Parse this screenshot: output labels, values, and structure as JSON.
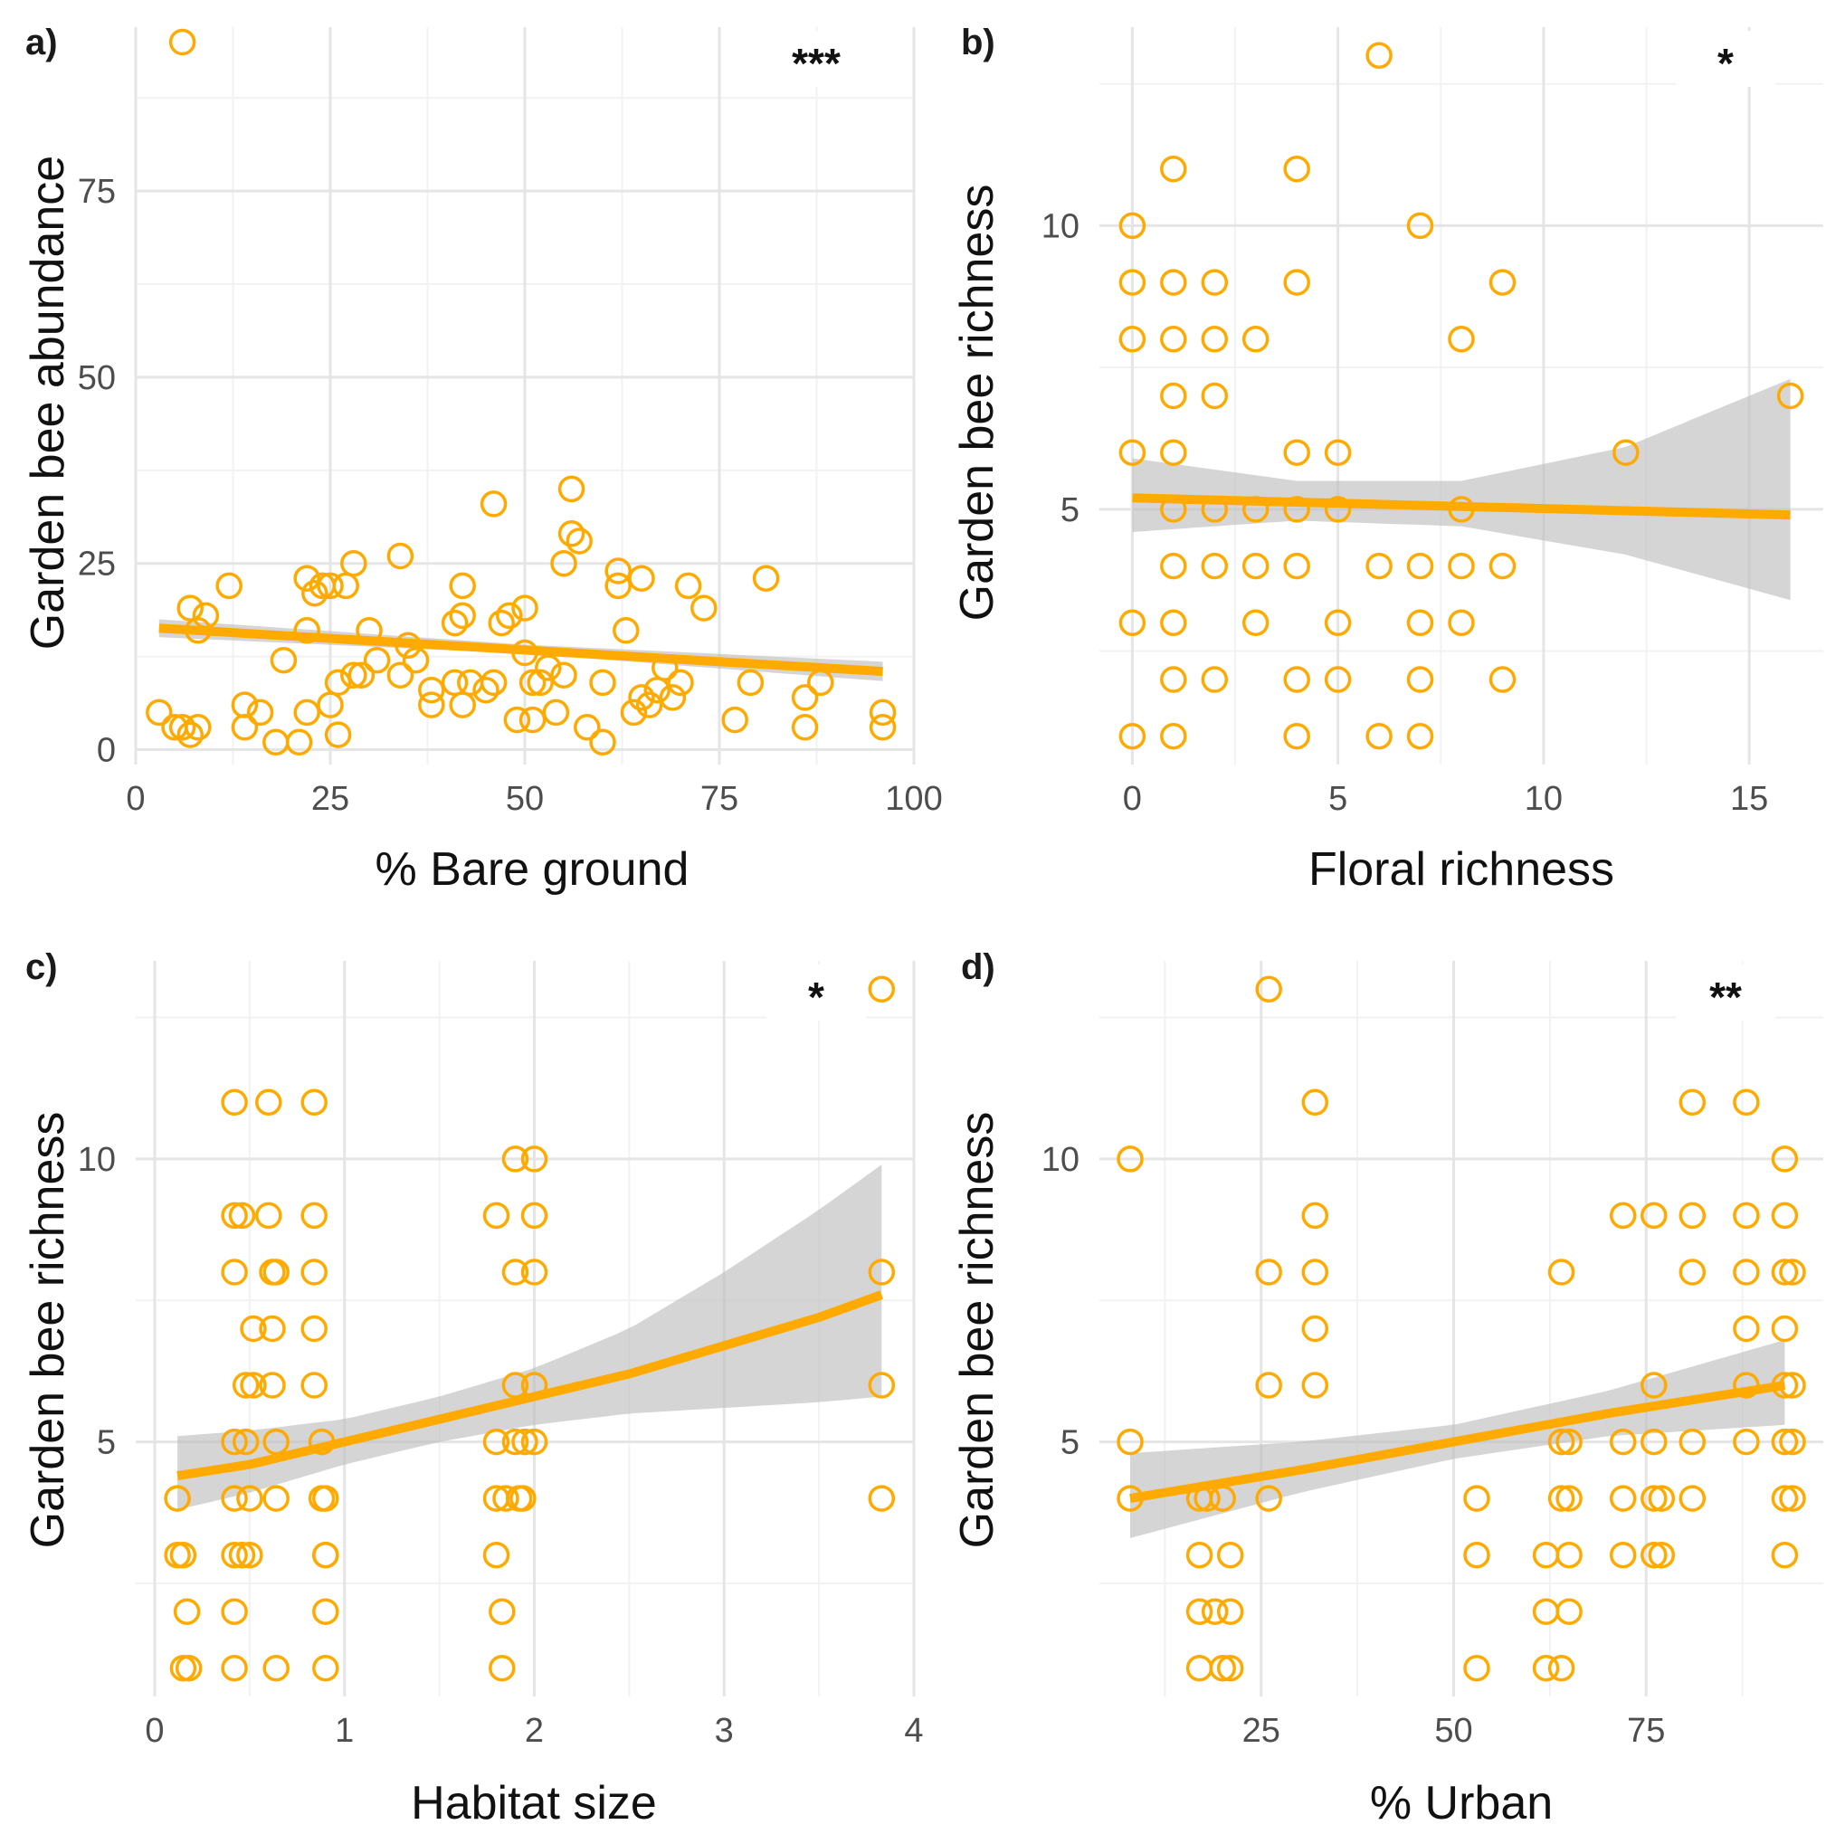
{
  "theme": {
    "point_color": "#FFAA00",
    "line_color": "#FFAA00",
    "ribbon_color": "#BEBEBE",
    "grid_major": "#E5E5E5",
    "grid_minor": "#F2F2F2"
  },
  "chart_data": [
    {
      "panel": "a)",
      "type": "scatter",
      "xlabel": "% Bare ground",
      "ylabel": "Garden bee abundance",
      "xlim": [
        0,
        100
      ],
      "ylim": [
        -2,
        97
      ],
      "xticks": [
        0,
        25,
        50,
        75,
        100
      ],
      "yticks": [
        0,
        25,
        50,
        75
      ],
      "significance": "***",
      "points": [
        [
          6,
          95
        ],
        [
          3,
          5
        ],
        [
          5,
          3
        ],
        [
          6,
          3
        ],
        [
          7,
          2
        ],
        [
          8,
          3
        ],
        [
          7,
          19
        ],
        [
          8,
          16
        ],
        [
          9,
          18
        ],
        [
          12,
          22
        ],
        [
          14,
          6
        ],
        [
          14,
          3
        ],
        [
          16,
          5
        ],
        [
          18,
          1
        ],
        [
          19,
          12
        ],
        [
          21,
          1
        ],
        [
          22,
          23
        ],
        [
          22,
          16
        ],
        [
          22,
          5
        ],
        [
          23,
          21
        ],
        [
          24,
          22
        ],
        [
          25,
          22
        ],
        [
          25,
          6
        ],
        [
          26,
          9
        ],
        [
          26,
          2
        ],
        [
          27,
          22
        ],
        [
          28,
          10
        ],
        [
          28,
          25
        ],
        [
          29,
          10
        ],
        [
          30,
          16
        ],
        [
          31,
          12
        ],
        [
          34,
          26
        ],
        [
          34,
          10
        ],
        [
          35,
          14
        ],
        [
          36,
          12
        ],
        [
          38,
          6
        ],
        [
          38,
          8
        ],
        [
          41,
          17
        ],
        [
          41,
          9
        ],
        [
          42,
          22
        ],
        [
          42,
          18
        ],
        [
          42,
          6
        ],
        [
          43,
          9
        ],
        [
          45,
          8
        ],
        [
          46,
          33
        ],
        [
          46,
          9
        ],
        [
          47,
          17
        ],
        [
          48,
          18
        ],
        [
          49,
          4
        ],
        [
          50,
          13
        ],
        [
          50,
          19
        ],
        [
          51,
          9
        ],
        [
          51,
          4
        ],
        [
          52,
          9
        ],
        [
          53,
          11
        ],
        [
          54,
          5
        ],
        [
          55,
          25
        ],
        [
          55,
          10
        ],
        [
          56,
          35
        ],
        [
          56,
          29
        ],
        [
          57,
          28
        ],
        [
          58,
          3
        ],
        [
          60,
          9
        ],
        [
          60,
          1
        ],
        [
          62,
          22
        ],
        [
          62,
          24
        ],
        [
          63,
          16
        ],
        [
          64,
          5
        ],
        [
          65,
          23
        ],
        [
          65,
          7
        ],
        [
          66,
          6
        ],
        [
          67,
          8
        ],
        [
          68,
          11
        ],
        [
          69,
          7
        ],
        [
          70,
          9
        ],
        [
          71,
          22
        ],
        [
          73,
          19
        ],
        [
          77,
          4
        ],
        [
          79,
          9
        ],
        [
          81,
          23
        ],
        [
          86,
          3
        ],
        [
          86,
          7
        ],
        [
          88,
          9
        ],
        [
          96,
          3
        ],
        [
          96,
          5
        ]
      ],
      "fit": {
        "x": [
          3,
          96
        ],
        "y": [
          16.3,
          10.5
        ]
      },
      "ribbon": {
        "x": [
          3,
          50,
          96
        ],
        "lower": [
          15.1,
          12.9,
          9.2
        ],
        "upper": [
          17.5,
          14.1,
          11.8
        ]
      }
    },
    {
      "panel": "b)",
      "type": "scatter",
      "xlabel": "Floral richness",
      "ylabel": "Garden bee richness",
      "xlim": [
        -0.8,
        16.8
      ],
      "ylim": [
        0.5,
        13.5
      ],
      "xticks": [
        0,
        5,
        10,
        15
      ],
      "yticks": [
        5,
        10
      ],
      "significance": "*",
      "points": [
        [
          0,
          10
        ],
        [
          0,
          9
        ],
        [
          0,
          8
        ],
        [
          0,
          6
        ],
        [
          0,
          3
        ],
        [
          0,
          1
        ],
        [
          1,
          11
        ],
        [
          1,
          9
        ],
        [
          1,
          8
        ],
        [
          1,
          7
        ],
        [
          1,
          6
        ],
        [
          1,
          5
        ],
        [
          1,
          4
        ],
        [
          1,
          3
        ],
        [
          1,
          2
        ],
        [
          1,
          1
        ],
        [
          2,
          9
        ],
        [
          2,
          8
        ],
        [
          2,
          7
        ],
        [
          2,
          5
        ],
        [
          2,
          4
        ],
        [
          2,
          2
        ],
        [
          3,
          8
        ],
        [
          3,
          5
        ],
        [
          3,
          4
        ],
        [
          3,
          3
        ],
        [
          4,
          11
        ],
        [
          4,
          9
        ],
        [
          4,
          6
        ],
        [
          4,
          5
        ],
        [
          4,
          4
        ],
        [
          4,
          2
        ],
        [
          4,
          1
        ],
        [
          5,
          6
        ],
        [
          5,
          5
        ],
        [
          5,
          3
        ],
        [
          5,
          2
        ],
        [
          6,
          13
        ],
        [
          6,
          4
        ],
        [
          6,
          1
        ],
        [
          7,
          10
        ],
        [
          7,
          4
        ],
        [
          7,
          3
        ],
        [
          7,
          2
        ],
        [
          7,
          1
        ],
        [
          8,
          8
        ],
        [
          8,
          5
        ],
        [
          8,
          4
        ],
        [
          8,
          3
        ],
        [
          9,
          9
        ],
        [
          9,
          4
        ],
        [
          9,
          2
        ],
        [
          12,
          6
        ],
        [
          16,
          7
        ]
      ],
      "fit": {
        "x": [
          0,
          16
        ],
        "y": [
          5.2,
          4.9
        ]
      },
      "ribbon": {
        "x": [
          0,
          4,
          8,
          12,
          16
        ],
        "lower": [
          4.6,
          4.8,
          4.7,
          4.2,
          3.4
        ],
        "upper": [
          5.9,
          5.5,
          5.5,
          6.1,
          7.3
        ]
      }
    },
    {
      "panel": "c)",
      "type": "scatter",
      "xlabel": "Habitat size",
      "ylabel": "Garden bee richness",
      "xlim": [
        -0.1,
        4.0
      ],
      "ylim": [
        0.5,
        13.5
      ],
      "xticks": [
        0,
        1,
        2,
        3,
        4
      ],
      "yticks": [
        5,
        10
      ],
      "significance": "*",
      "points": [
        [
          0.12,
          4
        ],
        [
          0.12,
          3
        ],
        [
          0.15,
          1
        ],
        [
          0.15,
          3
        ],
        [
          0.17,
          2
        ],
        [
          0.18,
          1
        ],
        [
          0.42,
          11
        ],
        [
          0.42,
          9
        ],
        [
          0.42,
          8
        ],
        [
          0.42,
          5
        ],
        [
          0.42,
          4
        ],
        [
          0.42,
          3
        ],
        [
          0.42,
          2
        ],
        [
          0.42,
          1
        ],
        [
          0.46,
          9
        ],
        [
          0.46,
          3
        ],
        [
          0.48,
          6
        ],
        [
          0.48,
          5
        ],
        [
          0.5,
          4
        ],
        [
          0.5,
          3
        ],
        [
          0.52,
          7
        ],
        [
          0.52,
          6
        ],
        [
          0.6,
          11
        ],
        [
          0.6,
          9
        ],
        [
          0.62,
          8
        ],
        [
          0.62,
          7
        ],
        [
          0.62,
          6
        ],
        [
          0.64,
          8
        ],
        [
          0.64,
          5
        ],
        [
          0.64,
          4
        ],
        [
          0.64,
          1
        ],
        [
          0.84,
          11
        ],
        [
          0.84,
          9
        ],
        [
          0.84,
          8
        ],
        [
          0.84,
          7
        ],
        [
          0.84,
          6
        ],
        [
          0.88,
          5
        ],
        [
          0.88,
          4
        ],
        [
          0.9,
          3
        ],
        [
          0.9,
          2
        ],
        [
          0.9,
          1
        ],
        [
          0.9,
          4
        ],
        [
          0.9,
          3
        ],
        [
          1.8,
          9
        ],
        [
          1.8,
          5
        ],
        [
          1.8,
          4
        ],
        [
          1.8,
          3
        ],
        [
          1.83,
          2
        ],
        [
          1.83,
          1
        ],
        [
          1.85,
          4
        ],
        [
          1.9,
          10
        ],
        [
          1.9,
          8
        ],
        [
          1.9,
          6
        ],
        [
          1.9,
          5
        ],
        [
          1.92,
          4
        ],
        [
          1.94,
          4
        ],
        [
          1.95,
          5
        ],
        [
          2.0,
          10
        ],
        [
          2.0,
          9
        ],
        [
          2.0,
          8
        ],
        [
          2.0,
          6
        ],
        [
          2.0,
          5
        ],
        [
          3.83,
          13
        ],
        [
          3.83,
          8
        ],
        [
          3.83,
          6
        ],
        [
          3.83,
          4
        ]
      ],
      "fit": {
        "x": [
          0.12,
          0.5,
          1,
          1.5,
          2,
          2.5,
          3,
          3.5,
          3.83
        ],
        "y": [
          4.4,
          4.6,
          5.0,
          5.4,
          5.8,
          6.2,
          6.7,
          7.2,
          7.6
        ]
      },
      "ribbon": {
        "x": [
          0.12,
          0.5,
          1,
          1.5,
          2,
          2.5,
          3,
          3.5,
          3.83
        ],
        "lower": [
          3.8,
          4.1,
          4.6,
          5.0,
          5.3,
          5.5,
          5.6,
          5.7,
          5.8
        ],
        "upper": [
          5.1,
          5.2,
          5.4,
          5.8,
          6.3,
          7.0,
          8.0,
          9.1,
          9.9
        ]
      }
    },
    {
      "panel": "d)",
      "type": "scatter",
      "xlabel": "% Urban",
      "ylabel": "Garden bee richness",
      "xlim": [
        4,
        98
      ],
      "ylim": [
        0.5,
        13.5
      ],
      "xticks": [
        25,
        50,
        75
      ],
      "yticks": [
        5,
        10
      ],
      "significance": "**",
      "points": [
        [
          8,
          10
        ],
        [
          8,
          5
        ],
        [
          8,
          4
        ],
        [
          17,
          4
        ],
        [
          17,
          3
        ],
        [
          17,
          2
        ],
        [
          17,
          1
        ],
        [
          18,
          4
        ],
        [
          19,
          2
        ],
        [
          20,
          4
        ],
        [
          20,
          1
        ],
        [
          21,
          2
        ],
        [
          21,
          3
        ],
        [
          21,
          1
        ],
        [
          26,
          13
        ],
        [
          26,
          8
        ],
        [
          26,
          6
        ],
        [
          26,
          4
        ],
        [
          32,
          11
        ],
        [
          32,
          9
        ],
        [
          32,
          8
        ],
        [
          32,
          7
        ],
        [
          32,
          6
        ],
        [
          53,
          4
        ],
        [
          53,
          3
        ],
        [
          53,
          1
        ],
        [
          62,
          3
        ],
        [
          62,
          2
        ],
        [
          62,
          1
        ],
        [
          64,
          8
        ],
        [
          64,
          5
        ],
        [
          64,
          4
        ],
        [
          64,
          1
        ],
        [
          65,
          3
        ],
        [
          65,
          2
        ],
        [
          65,
          4
        ],
        [
          65,
          5
        ],
        [
          72,
          9
        ],
        [
          72,
          5
        ],
        [
          72,
          4
        ],
        [
          72,
          3
        ],
        [
          76,
          9
        ],
        [
          76,
          6
        ],
        [
          76,
          5
        ],
        [
          76,
          4
        ],
        [
          76,
          3
        ],
        [
          77,
          4
        ],
        [
          77,
          3
        ],
        [
          81,
          11
        ],
        [
          81,
          9
        ],
        [
          81,
          8
        ],
        [
          81,
          5
        ],
        [
          81,
          4
        ],
        [
          88,
          11
        ],
        [
          88,
          9
        ],
        [
          88,
          8
        ],
        [
          88,
          7
        ],
        [
          88,
          6
        ],
        [
          88,
          5
        ],
        [
          93,
          10
        ],
        [
          93,
          9
        ],
        [
          93,
          8
        ],
        [
          93,
          7
        ],
        [
          93,
          6
        ],
        [
          93,
          5
        ],
        [
          93,
          4
        ],
        [
          93,
          3
        ],
        [
          94,
          8
        ],
        [
          94,
          6
        ],
        [
          94,
          5
        ],
        [
          94,
          4
        ]
      ],
      "fit": {
        "x": [
          8,
          30,
          50,
          70,
          93
        ],
        "y": [
          4.0,
          4.5,
          5.0,
          5.5,
          6.0
        ]
      },
      "ribbon": {
        "x": [
          8,
          30,
          50,
          70,
          93
        ],
        "lower": [
          3.3,
          4.1,
          4.7,
          5.1,
          5.3
        ],
        "upper": [
          4.8,
          5.0,
          5.3,
          5.9,
          6.8
        ]
      }
    }
  ]
}
